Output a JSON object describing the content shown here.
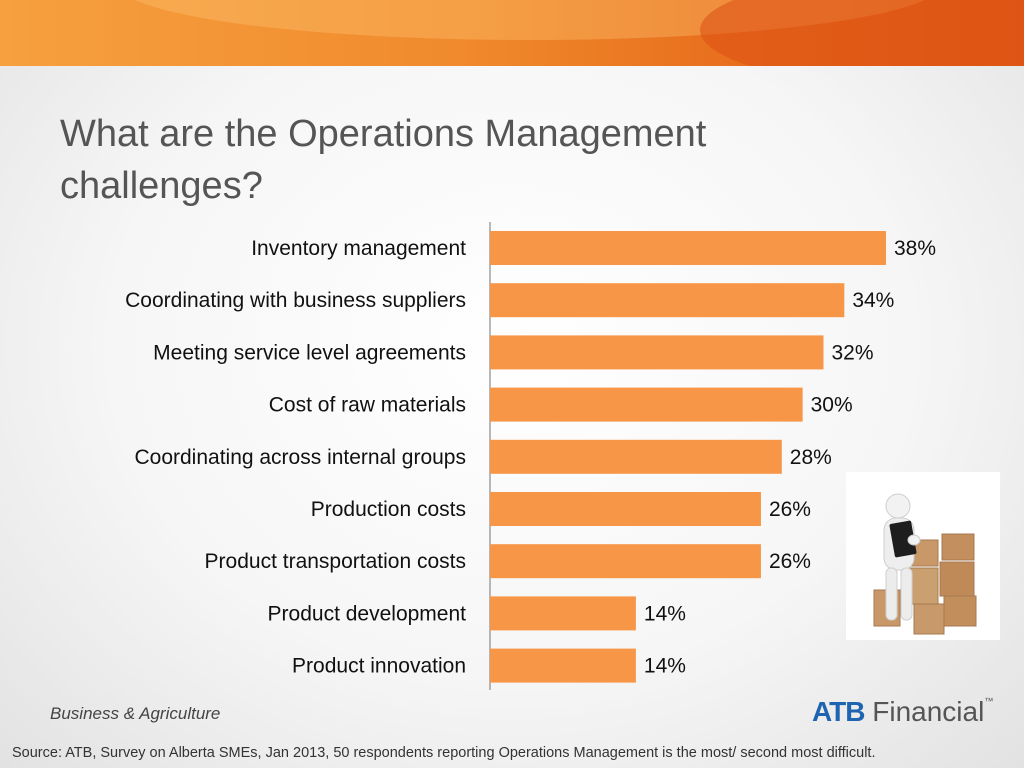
{
  "title": "What are the Operations Management challenges?",
  "chart_data": {
    "type": "bar",
    "orientation": "horizontal",
    "categories": [
      "Inventory management",
      "Coordinating with business suppliers",
      "Meeting service level agreements",
      "Cost of raw materials",
      "Coordinating across internal groups",
      "Production costs",
      "Product transportation costs",
      "Product development",
      "Product innovation"
    ],
    "values": [
      38,
      34,
      32,
      30,
      28,
      26,
      26,
      14,
      14
    ],
    "value_labels": [
      "38%",
      "34%",
      "32%",
      "30%",
      "28%",
      "26%",
      "26%",
      "14%",
      "14%"
    ],
    "bar_color": "#f79646",
    "grid": false,
    "legend": "none"
  },
  "image": {
    "subject": "3D figure holding clipboard next to stacked cardboard boxes",
    "icon": "clipboard-boxes-illustration"
  },
  "footer": {
    "left": "Business & Agriculture",
    "brand_prefix": "ATB",
    "brand_suffix": "Financial",
    "brand_mark": "™",
    "brand_color": "#1f64b0"
  },
  "source": "Source: ATB, Survey on Alberta SMEs, Jan 2013, 50 respondents reporting Operations Management is the most/ second most difficult."
}
